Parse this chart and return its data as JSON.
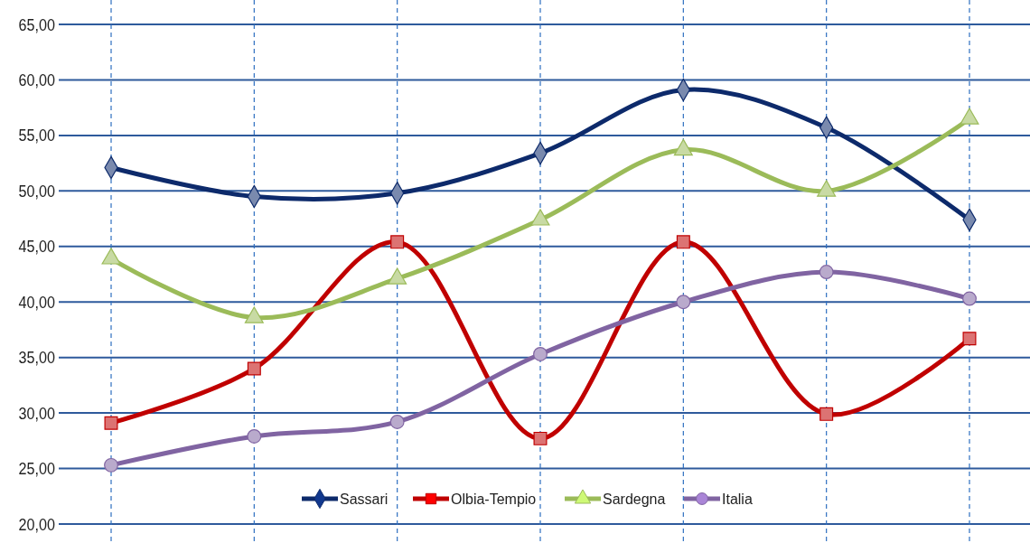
{
  "chart_data": {
    "type": "line",
    "categories": [
      null,
      null,
      null,
      null,
      null,
      null,
      null
    ],
    "series": [
      {
        "name": "Sassari",
        "color": "#0d2a6b",
        "marker": "diamond",
        "values": [
          52.1,
          49.5,
          49.8,
          53.4,
          59.1,
          55.7,
          47.4
        ]
      },
      {
        "name": "Olbia-Tempio",
        "color": "#c00000",
        "marker": "square",
        "values": [
          29.1,
          34.0,
          45.4,
          27.7,
          45.4,
          29.9,
          36.7
        ]
      },
      {
        "name": "Sardegna",
        "color": "#9bbb59",
        "marker": "triangle",
        "values": [
          43.9,
          38.6,
          42.1,
          47.4,
          53.7,
          50.0,
          56.5
        ]
      },
      {
        "name": "Italia",
        "color": "#8064a2",
        "marker": "circle",
        "values": [
          25.3,
          27.9,
          29.2,
          35.3,
          40.0,
          42.7,
          40.3
        ]
      }
    ],
    "ylim": [
      20,
      65
    ],
    "yticks": [
      {
        "value": 20,
        "label": "20,00"
      },
      {
        "value": 25,
        "label": "25,00"
      },
      {
        "value": 30,
        "label": "30,00"
      },
      {
        "value": 35,
        "label": "35,00"
      },
      {
        "value": 40,
        "label": "40,00"
      },
      {
        "value": 45,
        "label": "45,00"
      },
      {
        "value": 50,
        "label": "50,00"
      },
      {
        "value": 55,
        "label": "55,00"
      },
      {
        "value": 60,
        "label": "60,00"
      },
      {
        "value": 65,
        "label": "65,00"
      }
    ],
    "grid": true,
    "legend": "bottom",
    "line_style": "solid"
  }
}
